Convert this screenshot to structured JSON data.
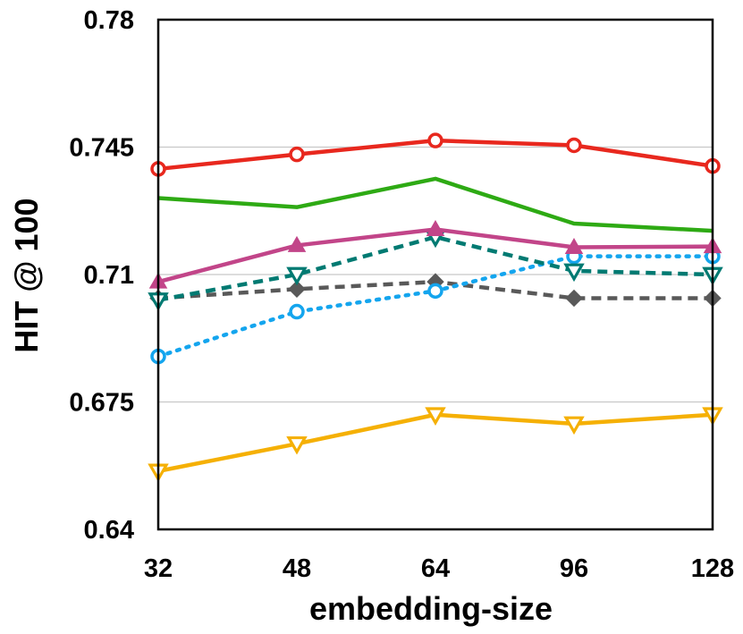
{
  "chart_data": {
    "type": "line",
    "title": "",
    "xlabel": "embedding-size",
    "ylabel": "HIT @ 100",
    "categories": [
      "32",
      "48",
      "64",
      "96",
      "128"
    ],
    "ylim": [
      0.64,
      0.78
    ],
    "yticks": [
      "0.64",
      "0.675",
      "0.71",
      "0.745",
      "0.78"
    ],
    "grid": "horizontal",
    "legend": "none",
    "series": [
      {
        "values": [
          0.739,
          0.743,
          0.7468,
          0.7455,
          0.7398
        ],
        "color": "#e8281e",
        "dash": "solid",
        "marker": "circle"
      },
      {
        "values": [
          0.731,
          0.7285,
          0.7363,
          0.724,
          0.722
        ],
        "color": "#2eaa14",
        "dash": "solid",
        "marker": "none"
      },
      {
        "values": [
          0.708,
          0.718,
          0.7224,
          0.7175,
          0.7177
        ],
        "color": "#c24589",
        "dash": "solid",
        "marker": "triangle-up"
      },
      {
        "values": [
          0.703,
          0.71,
          0.7203,
          0.711,
          0.71
        ],
        "color": "#007a72",
        "dash": "dashed",
        "marker": "triangle-down"
      },
      {
        "values": [
          0.6875,
          0.6998,
          0.7055,
          0.715,
          0.715
        ],
        "color": "#14a5ee",
        "dash": "dotted",
        "marker": "circle"
      },
      {
        "values": [
          0.7035,
          0.706,
          0.708,
          0.7035,
          0.7035
        ],
        "color": "#595959",
        "dash": "dashed",
        "marker": "diamond"
      },
      {
        "values": [
          0.656,
          0.6635,
          0.6715,
          0.669,
          0.6715
        ],
        "color": "#f5b005",
        "dash": "solid",
        "marker": "triangle-down"
      }
    ]
  }
}
